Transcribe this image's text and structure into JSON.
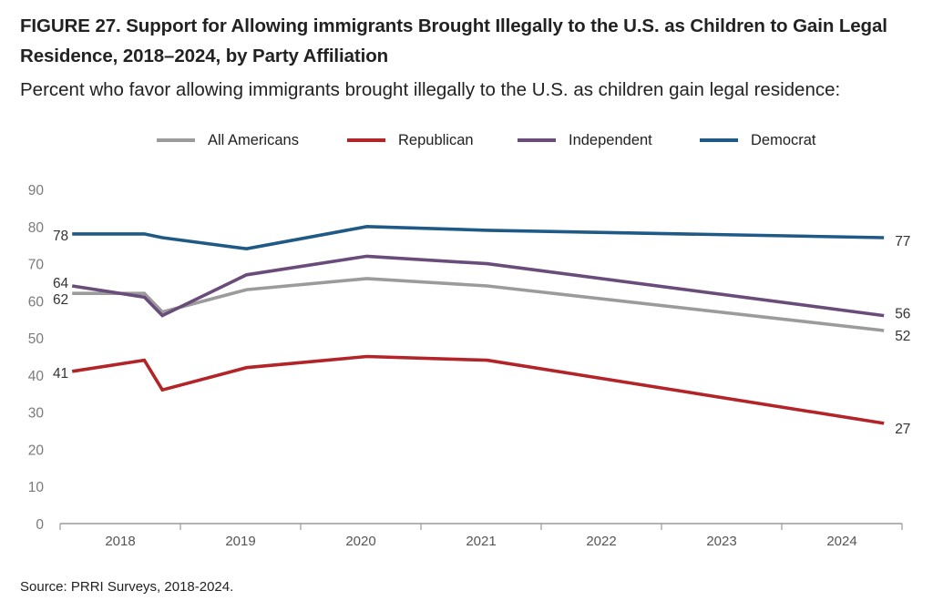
{
  "title": "FIGURE 27.  Support for Allowing immigrants Brought Illegally to the U.S. as Children to Gain Legal Residence, 2018–2024, by Party Affiliation",
  "subtitle": "Percent who favor allowing immigrants brought illegally to the U.S. as children gain legal residence:",
  "source": "Source: PRRI Surveys, 2018-2024.",
  "chart_data": {
    "type": "line",
    "title": "FIGURE 27.  Support for Allowing immigrants Brought Illegally to the U.S. as Children to Gain Legal Residence, 2018–2024, by Party Affiliation",
    "subtitle": "Percent who favor allowing immigrants brought illegally to the U.S. as children gain legal residence:",
    "xlabel": "",
    "ylabel": "",
    "ylim": [
      0,
      90
    ],
    "yticks": [
      0,
      10,
      20,
      30,
      40,
      50,
      60,
      70,
      80,
      90
    ],
    "xlim": [
      2017.6,
      2024.6
    ],
    "xticks": [
      "2018",
      "2019",
      "2020",
      "2021",
      "2022",
      "2023",
      "2024"
    ],
    "x": [
      2017.7,
      2018.3,
      2018.45,
      2019.15,
      2020.15,
      2021.15,
      2024.45
    ],
    "grid": false,
    "legend_position": "top-center",
    "series": [
      {
        "name": "All Americans",
        "color": "#9b9b9b",
        "values": [
          62,
          62,
          57,
          63,
          66,
          64,
          52
        ],
        "start_label": "62",
        "end_label": "52"
      },
      {
        "name": "Republican",
        "color": "#b22428",
        "values": [
          41,
          44,
          36,
          42,
          45,
          44,
          27
        ],
        "start_label": "41",
        "end_label": "27"
      },
      {
        "name": "Independent",
        "color": "#6a4c7a",
        "values": [
          64,
          61,
          56,
          67,
          72,
          70,
          56
        ],
        "start_label": "64",
        "end_label": "56"
      },
      {
        "name": "Democrat",
        "color": "#1f5a87",
        "values": [
          78,
          78,
          77,
          74,
          80,
          79,
          77
        ],
        "start_label": "78",
        "end_label": "77"
      }
    ]
  }
}
